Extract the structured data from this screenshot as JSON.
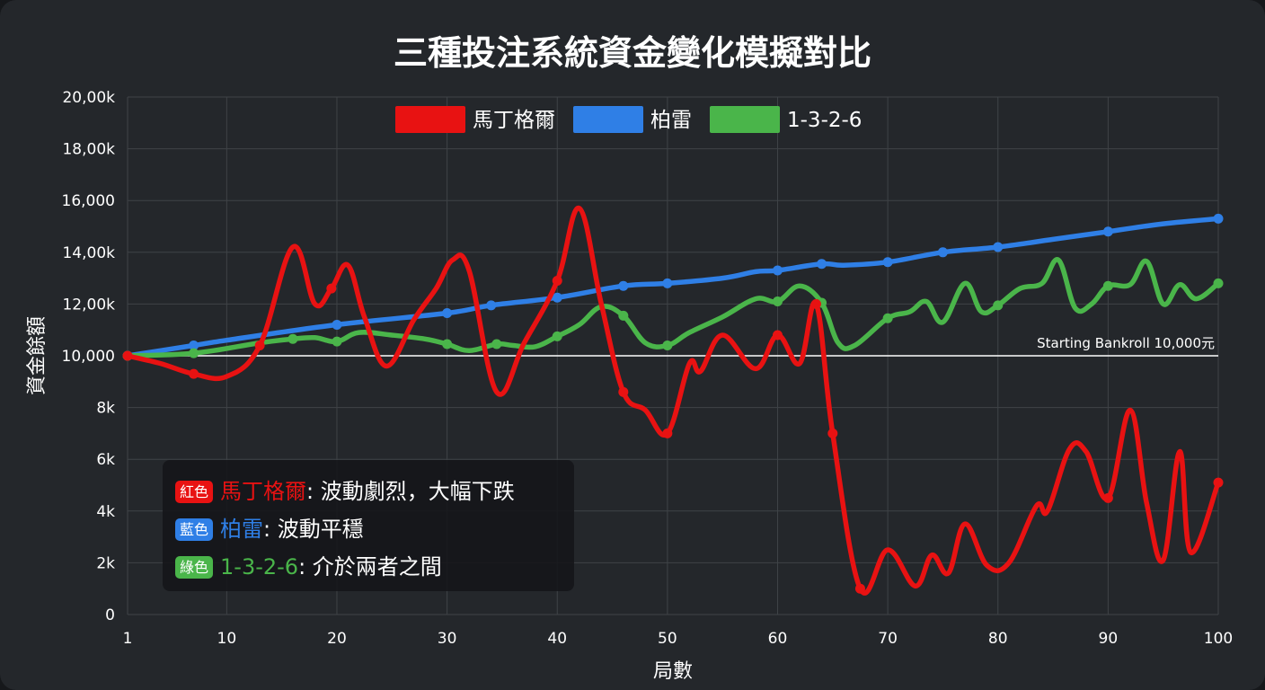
{
  "chart_data": {
    "type": "line",
    "title": "三種投注系統資金變化模擬對比",
    "xlabel": "局數",
    "ylabel": "資金餘額",
    "xlim": [
      1,
      100
    ],
    "ylim": [
      0,
      20000
    ],
    "x_ticks": [
      1,
      10,
      20,
      30,
      40,
      50,
      60,
      70,
      80,
      90,
      100
    ],
    "y_ticks": [
      {
        "value": 0,
        "label": "0"
      },
      {
        "value": 2000,
        "label": "2k"
      },
      {
        "value": 4000,
        "label": "4k"
      },
      {
        "value": 6000,
        "label": "6k"
      },
      {
        "value": 8000,
        "label": "8k"
      },
      {
        "value": 10000,
        "label": "10,000"
      },
      {
        "value": 12000,
        "label": "12,00k"
      },
      {
        "value": 14000,
        "label": "14,00k"
      },
      {
        "value": 16000,
        "label": "16,000"
      },
      {
        "value": 18000,
        "label": "18,00k"
      },
      {
        "value": 20000,
        "label": "20,00k"
      }
    ],
    "grid": true,
    "legend_position": "top",
    "reference_line": {
      "y": 10000,
      "label": "Starting Bankroll 10,000元",
      "color": "#ffffff"
    },
    "series": [
      {
        "name": "馬丁格爾",
        "color": "#e81212",
        "points": [
          [
            1,
            10000
          ],
          [
            4,
            9700
          ],
          [
            7,
            9300
          ],
          [
            10,
            9200
          ],
          [
            13,
            10400
          ],
          [
            16,
            14200
          ],
          [
            18,
            12000
          ],
          [
            19.5,
            12600
          ],
          [
            21,
            13500
          ],
          [
            22.5,
            11500
          ],
          [
            24.5,
            9600
          ],
          [
            27,
            11400
          ],
          [
            29,
            12600
          ],
          [
            30.5,
            13700
          ],
          [
            32,
            13300
          ],
          [
            34.5,
            8600
          ],
          [
            37,
            10500
          ],
          [
            40,
            12900
          ],
          [
            42,
            15700
          ],
          [
            44,
            12000
          ],
          [
            46,
            8600
          ],
          [
            48,
            7900
          ],
          [
            50,
            7000
          ],
          [
            52,
            9700
          ],
          [
            53,
            9400
          ],
          [
            55,
            10800
          ],
          [
            58,
            9500
          ],
          [
            60,
            10800
          ],
          [
            62,
            9700
          ],
          [
            63.5,
            12000
          ],
          [
            65,
            7000
          ],
          [
            67.5,
            1000
          ],
          [
            70,
            2500
          ],
          [
            72.5,
            1100
          ],
          [
            74,
            2300
          ],
          [
            75.5,
            1600
          ],
          [
            77,
            3500
          ],
          [
            79,
            1900
          ],
          [
            81,
            2000
          ],
          [
            83.5,
            4200
          ],
          [
            84.5,
            4000
          ],
          [
            86.5,
            6400
          ],
          [
            88,
            6300
          ],
          [
            90,
            4500
          ],
          [
            92,
            7900
          ],
          [
            93.5,
            4300
          ],
          [
            95,
            2100
          ],
          [
            96.5,
            6300
          ],
          [
            97.5,
            2400
          ],
          [
            100,
            5100
          ]
        ],
        "markers": [
          1,
          7,
          13,
          19.5,
          40,
          46,
          50,
          60,
          63.5,
          65,
          67.5,
          90,
          100
        ]
      },
      {
        "name": "柏雷",
        "color": "#2f7fe6",
        "points": [
          [
            1,
            10000
          ],
          [
            7,
            10400
          ],
          [
            10,
            10600
          ],
          [
            20,
            11200
          ],
          [
            30,
            11650
          ],
          [
            34,
            11950
          ],
          [
            40,
            12250
          ],
          [
            46,
            12700
          ],
          [
            50,
            12800
          ],
          [
            55,
            13000
          ],
          [
            58,
            13250
          ],
          [
            60,
            13300
          ],
          [
            64,
            13550
          ],
          [
            66,
            13500
          ],
          [
            70,
            13620
          ],
          [
            75,
            14000
          ],
          [
            80,
            14200
          ],
          [
            85,
            14500
          ],
          [
            90,
            14800
          ],
          [
            95,
            15100
          ],
          [
            100,
            15300
          ]
        ],
        "markers": [
          1,
          7,
          20,
          30,
          34,
          40,
          46,
          50,
          60,
          64,
          70,
          75,
          80,
          90,
          100
        ]
      },
      {
        "name": "1-3-2-6",
        "color": "#4ab54a",
        "points": [
          [
            1,
            10000
          ],
          [
            7,
            10100
          ],
          [
            13,
            10500
          ],
          [
            16,
            10650
          ],
          [
            18,
            10700
          ],
          [
            20,
            10550
          ],
          [
            22,
            10900
          ],
          [
            25,
            10800
          ],
          [
            28,
            10650
          ],
          [
            30,
            10450
          ],
          [
            32,
            10200
          ],
          [
            34.5,
            10450
          ],
          [
            36,
            10400
          ],
          [
            38,
            10350
          ],
          [
            40,
            10750
          ],
          [
            42,
            11200
          ],
          [
            44,
            11900
          ],
          [
            46,
            11550
          ],
          [
            48,
            10500
          ],
          [
            50,
            10400
          ],
          [
            52,
            10900
          ],
          [
            55,
            11500
          ],
          [
            58,
            12200
          ],
          [
            60,
            12100
          ],
          [
            62,
            12700
          ],
          [
            64,
            12050
          ],
          [
            65.5,
            10500
          ],
          [
            67,
            10400
          ],
          [
            70,
            11450
          ],
          [
            72,
            11700
          ],
          [
            73.5,
            12100
          ],
          [
            75,
            11300
          ],
          [
            77,
            12800
          ],
          [
            78.5,
            11700
          ],
          [
            80,
            11950
          ],
          [
            82,
            12600
          ],
          [
            84,
            12800
          ],
          [
            85.5,
            13700
          ],
          [
            87,
            11850
          ],
          [
            88.5,
            12000
          ],
          [
            90,
            12700
          ],
          [
            92,
            12750
          ],
          [
            93.5,
            13650
          ],
          [
            95,
            12000
          ],
          [
            96.5,
            12750
          ],
          [
            98,
            12200
          ],
          [
            100,
            12800
          ]
        ],
        "markers": [
          1,
          7,
          16,
          20,
          30,
          34.5,
          40,
          46,
          50,
          60,
          64,
          70,
          80,
          90,
          100
        ]
      }
    ]
  },
  "notes": [
    {
      "badge": "紅色",
      "name": "馬丁格爾",
      "desc": ": 波動劇烈，大幅下跌",
      "color": "#e81212"
    },
    {
      "badge": "藍色",
      "name": "柏雷",
      "desc": ": 波動平穩",
      "color": "#2f7fe6"
    },
    {
      "badge": "綠色",
      "name": "1-3-2-6",
      "desc": ": 介於兩者之間",
      "color": "#4ab54a"
    }
  ]
}
